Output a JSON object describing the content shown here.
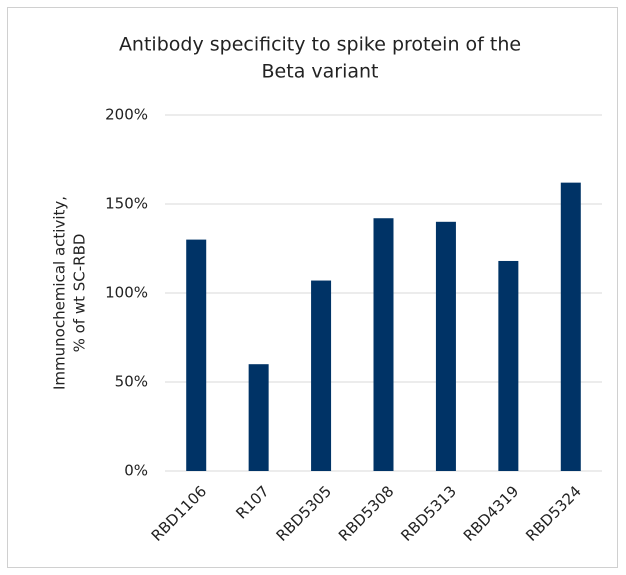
{
  "chart_data": {
    "type": "bar",
    "title": [
      "Antibody specificity to spike protein of the",
      "Beta variant"
    ],
    "y_label": [
      "Immunochemical activity,",
      "% of wt SC-RBD"
    ],
    "categories": [
      "RBD1106",
      "R107",
      "RBD5305",
      "RBD5308",
      "RBD5313",
      "RBD4319",
      "RBD5324"
    ],
    "values": [
      130,
      60,
      107,
      142,
      140,
      118,
      162
    ],
    "color": "#003366",
    "ylim": [
      0,
      200
    ],
    "yticks": [
      {
        "value": 0,
        "label": "0%"
      },
      {
        "value": 50,
        "label": "50%"
      },
      {
        "value": 100,
        "label": "100%"
      },
      {
        "value": 150,
        "label": "150%"
      },
      {
        "value": 200,
        "label": "200%"
      }
    ],
    "grid": true
  }
}
